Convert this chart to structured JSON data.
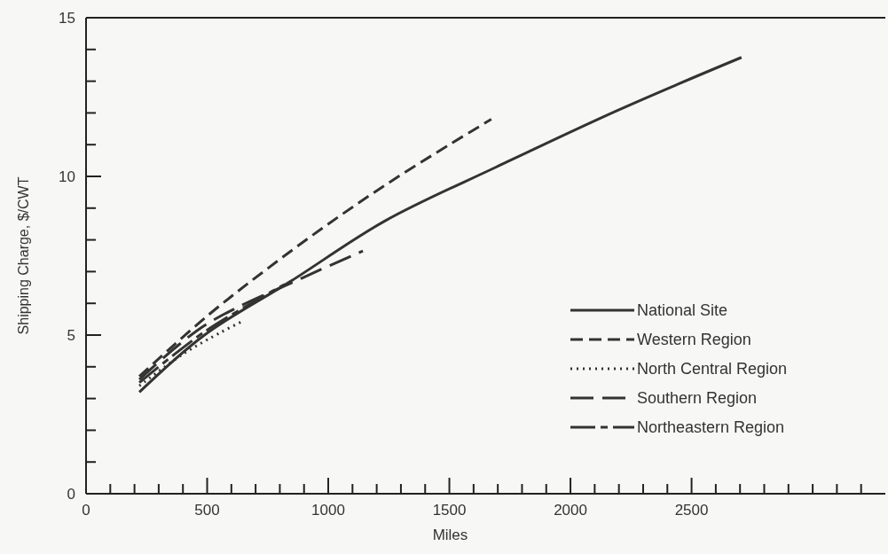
{
  "chart_data": {
    "type": "line",
    "xlabel": "Miles",
    "ylabel": "Shipping Charge, $/CWT",
    "xlim": [
      0,
      3300
    ],
    "ylim": [
      0,
      15
    ],
    "xticks": [
      0,
      {
        "value": 100,
        "label": null
      },
      {
        "value": 200,
        "label": null
      },
      {
        "value": 300,
        "label": null
      },
      {
        "value": 400,
        "label": null
      },
      500,
      {
        "value": 600,
        "label": null
      },
      {
        "value": 700,
        "label": null
      },
      {
        "value": 800,
        "label": null
      },
      {
        "value": 900,
        "label": null
      },
      1000,
      {
        "value": 1100,
        "label": null
      },
      {
        "value": 1200,
        "label": null
      },
      {
        "value": 1300,
        "label": null
      },
      {
        "value": 1400,
        "label": null
      },
      1500,
      {
        "value": 1600,
        "label": null
      },
      {
        "value": 1700,
        "label": null
      },
      {
        "value": 1800,
        "label": null
      },
      {
        "value": 1900,
        "label": null
      },
      2000,
      {
        "value": 2100,
        "label": null
      },
      {
        "value": 2200,
        "label": null
      },
      {
        "value": 2300,
        "label": null
      },
      {
        "value": 2400,
        "label": null
      },
      2500,
      {
        "value": 2600,
        "label": null
      },
      {
        "value": 2700,
        "label": null
      },
      {
        "value": 2800,
        "label": null
      },
      {
        "value": 2900,
        "label": null
      },
      {
        "value": 3000,
        "label": null
      },
      {
        "value": 3100,
        "label": null
      },
      {
        "value": 3200,
        "label": null
      }
    ],
    "yticks": [
      0,
      {
        "value": 1,
        "label": null
      },
      {
        "value": 2,
        "label": null
      },
      {
        "value": 3,
        "label": null
      },
      {
        "value": 4,
        "label": null
      },
      5,
      {
        "value": 6,
        "label": null
      },
      {
        "value": 7,
        "label": null
      },
      {
        "value": 8,
        "label": null
      },
      {
        "value": 9,
        "label": null
      },
      10,
      {
        "value": 11,
        "label": null
      },
      {
        "value": 12,
        "label": null
      },
      {
        "value": 13,
        "label": null
      },
      {
        "value": 14,
        "label": null
      },
      15
    ],
    "grid": false,
    "legend": "right",
    "series": [
      {
        "name": "National Site",
        "color": "#333333",
        "line_style": "solid",
        "x": [
          220,
          489,
          846,
          1235,
          1695,
          2200,
          2706
        ],
        "values": [
          3.2,
          5.0,
          6.7,
          8.6,
          10.3,
          12.1,
          13.75
        ]
      },
      {
        "name": "Western Region",
        "color": "#333333",
        "line_style": "dashed",
        "x": [
          220,
          500,
          750,
          1000,
          1250,
          1500,
          1673
        ],
        "values": [
          3.7,
          5.6,
          7.1,
          8.5,
          9.8,
          11.0,
          11.8
        ]
      },
      {
        "name": "North Central Region",
        "color": "#333333",
        "line_style": "dotted",
        "x": [
          220,
          400,
          560,
          650
        ],
        "values": [
          3.4,
          4.4,
          5.1,
          5.45
        ]
      },
      {
        "name": "Southern Region",
        "color": "#333333",
        "line_style": "longdash",
        "x": [
          220,
          489,
          893,
          1143
        ],
        "values": [
          3.6,
          5.3,
          6.8,
          7.65
        ]
      },
      {
        "name": "Northeastern Region",
        "color": "#333333",
        "line_style": "dashdot",
        "x": [
          220,
          489,
          820
        ],
        "values": [
          3.5,
          5.1,
          6.6
        ]
      }
    ]
  }
}
